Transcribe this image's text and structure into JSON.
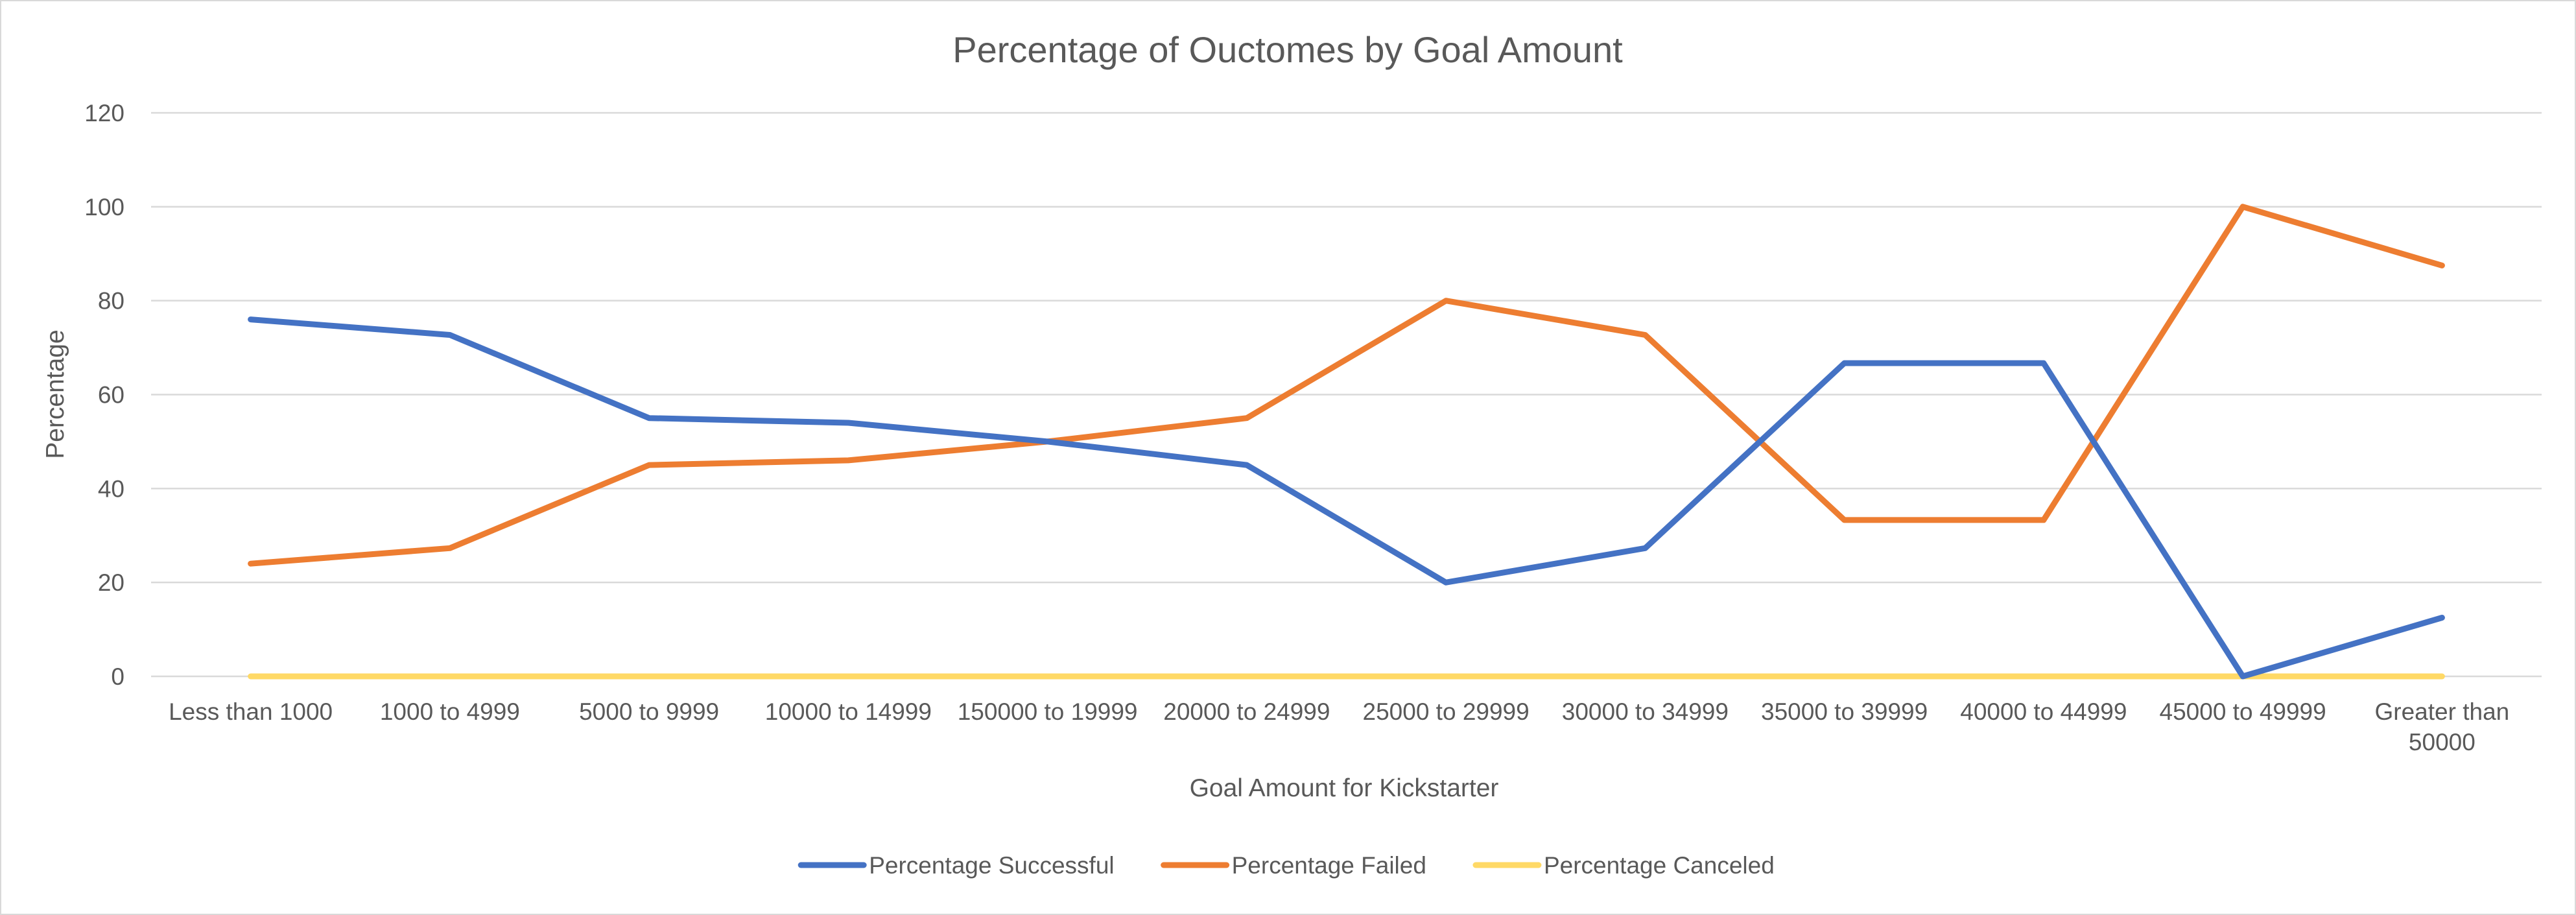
{
  "chart_data": {
    "type": "line",
    "title": "Percentage of Ouctomes by Goal Amount",
    "xlabel": "Goal Amount for Kickstarter",
    "ylabel": "Percentage",
    "ylim": [
      0,
      120
    ],
    "yticks": [
      0,
      20,
      40,
      60,
      80,
      100,
      120
    ],
    "grid": true,
    "legend_position": "bottom",
    "categories": [
      "Less than 1000",
      "1000 to 4999",
      "5000 to 9999",
      "10000 to 14999",
      "150000 to 19999",
      "20000 to 24999",
      "25000 to 29999",
      "30000 to 34999",
      "35000 to 39999",
      "40000 to 44999",
      "45000 to 49999",
      "Greater than 50000"
    ],
    "series": [
      {
        "name": "Percentage Successful",
        "color": "#4472c4",
        "values": [
          76,
          72.7,
          55,
          54,
          50,
          45,
          20,
          27.3,
          66.7,
          66.7,
          0,
          12.5
        ]
      },
      {
        "name": "Percentage Failed",
        "color": "#ed7d31",
        "values": [
          24,
          27.3,
          45,
          46,
          50,
          55,
          80,
          72.7,
          33.3,
          33.3,
          100,
          87.5
        ]
      },
      {
        "name": "Percentage Canceled",
        "color": "#ffd966",
        "values": [
          0,
          0,
          0,
          0,
          0,
          0,
          0,
          0,
          0,
          0,
          0,
          0
        ]
      }
    ]
  }
}
